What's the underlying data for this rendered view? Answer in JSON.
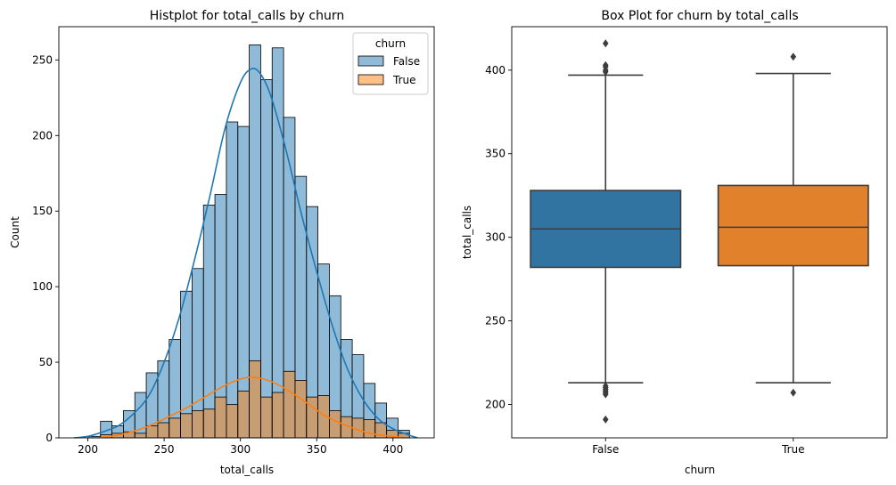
{
  "chart_data": [
    {
      "type": "histogram",
      "title": "Histplot for total_calls by churn",
      "xlabel": "total_calls",
      "ylabel": "Count",
      "xlim": [
        181,
        427
      ],
      "ylim": [
        0,
        272
      ],
      "xticks": [
        200,
        250,
        300,
        350,
        400
      ],
      "yticks": [
        0,
        50,
        100,
        150,
        200,
        250
      ],
      "legend": {
        "title": "churn",
        "position": "top-right",
        "entries": [
          "False",
          "True"
        ]
      },
      "bin_edges": [
        200.8,
        208.3,
        215.8,
        223.3,
        230.8,
        238.3,
        245.8,
        253.3,
        260.8,
        268.3,
        275.8,
        283.3,
        290.8,
        298.3,
        305.8,
        313.3,
        320.8,
        328.3,
        335.8,
        343.3,
        350.8,
        358.3,
        365.8,
        373.3,
        380.8,
        388.3,
        395.8,
        403.3,
        410.8
      ],
      "series": [
        {
          "name": "False",
          "color": "#1f77b4",
          "values": [
            1,
            11,
            8,
            18,
            30,
            43,
            51,
            65,
            97,
            112,
            154,
            161,
            209,
            206,
            260,
            237,
            258,
            212,
            173,
            153,
            115,
            94,
            65,
            55,
            36,
            23,
            13,
            5
          ],
          "kde": [
            [
              191,
              0
            ],
            [
              200,
              1
            ],
            [
              210,
              4
            ],
            [
              220,
              8
            ],
            [
              230,
              16
            ],
            [
              240,
              28
            ],
            [
              250,
              50
            ],
            [
              260,
              80
            ],
            [
              270,
              118
            ],
            [
              280,
              160
            ],
            [
              290,
              205
            ],
            [
              300,
              235
            ],
            [
              307,
              244
            ],
            [
              313,
              241
            ],
            [
              320,
              226
            ],
            [
              330,
              190
            ],
            [
              340,
              148
            ],
            [
              350,
              110
            ],
            [
              360,
              75
            ],
            [
              370,
              46
            ],
            [
              380,
              26
            ],
            [
              390,
              13
            ],
            [
              400,
              6
            ],
            [
              410,
              2
            ],
            [
              416,
              0
            ]
          ]
        },
        {
          "name": "True",
          "color": "#ff7f0e",
          "values": [
            0,
            2,
            3,
            4,
            3,
            8,
            10,
            13,
            16,
            18,
            19,
            27,
            22,
            31,
            51,
            27,
            30,
            44,
            38,
            27,
            28,
            18,
            14,
            13,
            12,
            10,
            5,
            3
          ],
          "kde": [
            [
              207,
              0
            ],
            [
              215,
              1
            ],
            [
              225,
              3
            ],
            [
              235,
              6
            ],
            [
              245,
              10
            ],
            [
              255,
              15
            ],
            [
              265,
              20
            ],
            [
              275,
              26
            ],
            [
              285,
              32
            ],
            [
              295,
              37
            ],
            [
              305,
              40
            ],
            [
              315,
              39
            ],
            [
              325,
              35
            ],
            [
              335,
              29
            ],
            [
              345,
              22
            ],
            [
              355,
              15
            ],
            [
              365,
              10
            ],
            [
              375,
              6
            ],
            [
              385,
              3
            ],
            [
              395,
              1.5
            ],
            [
              407,
              0
            ]
          ]
        }
      ]
    },
    {
      "type": "box",
      "title": "Box Plot for churn by total_calls",
      "xlabel": "churn",
      "ylabel": "total_calls",
      "categories": [
        "False",
        "True"
      ],
      "ylim": [
        180,
        426
      ],
      "yticks": [
        200,
        250,
        300,
        350,
        400
      ],
      "boxes": [
        {
          "name": "False",
          "color": "#3274a1",
          "q1": 282,
          "median": 305,
          "q3": 328,
          "whisker_low": 213,
          "whisker_high": 397,
          "outliers": [
            191,
            206,
            207,
            208,
            209,
            210,
            211,
            399,
            400,
            402,
            403,
            416
          ]
        },
        {
          "name": "True",
          "color": "#e1812c",
          "q1": 283,
          "median": 306,
          "q3": 331,
          "whisker_low": 213,
          "whisker_high": 398,
          "outliers": [
            207,
            408
          ]
        }
      ]
    }
  ]
}
